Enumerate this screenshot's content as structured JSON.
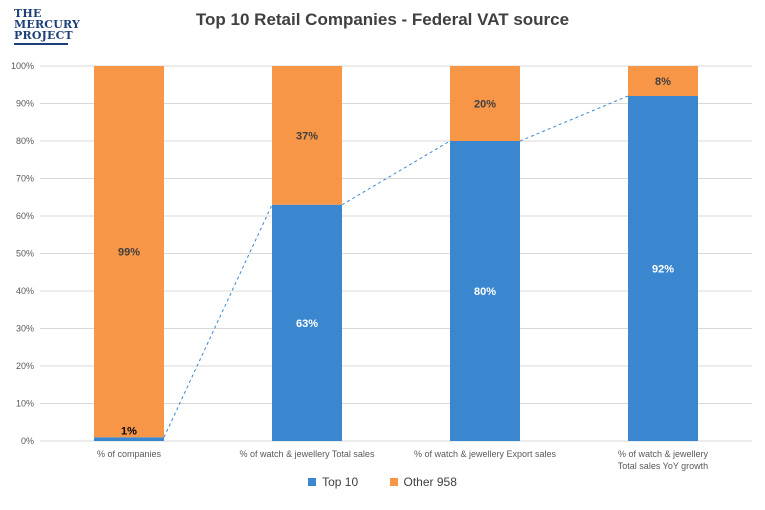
{
  "logo": {
    "line1": "THE",
    "line2": "MERCURY",
    "line3": "PROJECT",
    "color": "#1d3f7a"
  },
  "colors": {
    "top10": "#3a87d0",
    "other": "#f79646",
    "trend": "#3a87d0",
    "grid": "#d9d9d9"
  },
  "legend": {
    "top10": "Top 10",
    "other": "Other 958"
  },
  "chart_data": {
    "type": "bar",
    "stacked": true,
    "title": "Top 10 Retail Companies - Federal VAT source",
    "categories": [
      "% of companies",
      "% of watch & jewellery Total sales",
      "% of watch & jewellery Export sales",
      "% of watch & jewellery\nTotal sales YoY growth"
    ],
    "series": [
      {
        "name": "Top 10",
        "values": [
          1,
          63,
          80,
          92
        ],
        "labels": [
          "1%",
          "63%",
          "80%",
          "92%"
        ]
      },
      {
        "name": "Other 958",
        "values": [
          99,
          37,
          20,
          8
        ],
        "labels": [
          "99%",
          "37%",
          "20%",
          "8%"
        ]
      }
    ],
    "yticks": [
      "0%",
      "10%",
      "20%",
      "30%",
      "40%",
      "50%",
      "60%",
      "70%",
      "80%",
      "90%",
      "100%"
    ],
    "ylim": [
      0,
      100
    ],
    "grid": true,
    "trend_line": "dashed line connecting top of Top 10 segments",
    "legend_position": "bottom"
  }
}
